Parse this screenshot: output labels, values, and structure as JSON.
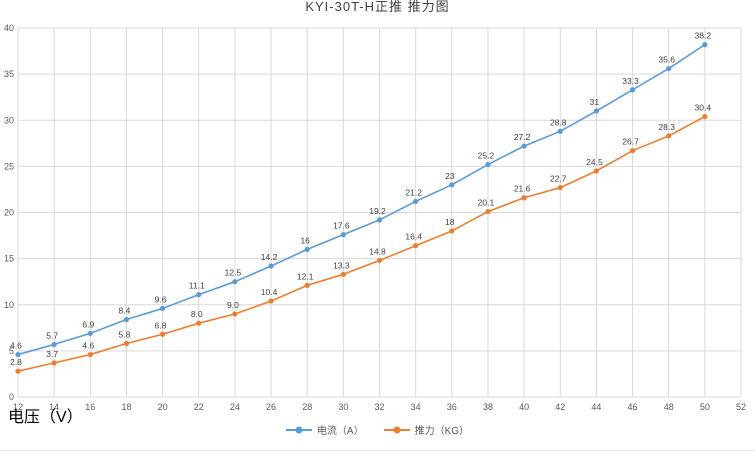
{
  "title": "KYI-30T-H正推 推力图",
  "axis": {
    "x_title": "电压（V）"
  },
  "colors": {
    "current": "#5B9BD5",
    "thrust": "#ED7D31",
    "grid": "#d9d9d9"
  },
  "chart_data": {
    "type": "line",
    "title": "KYI-30T-H正推 推力图",
    "xlabel": "电压（V）",
    "ylabel": "",
    "x": [
      12,
      14,
      16,
      18,
      20,
      22,
      24,
      26,
      28,
      30,
      32,
      34,
      36,
      38,
      40,
      42,
      44,
      46,
      48,
      50
    ],
    "series": [
      {
        "name": "电流（A）",
        "color": "#5B9BD5",
        "values": [
          4.6,
          5.7,
          6.9,
          8.4,
          9.6,
          11.1,
          12.5,
          14.2,
          16,
          17.6,
          19.2,
          21.2,
          23,
          25.2,
          27.2,
          28.8,
          31,
          33.3,
          35.6,
          38.2
        ],
        "labels": [
          "4.6",
          "5.7",
          "6.9",
          "8.4",
          "9.6",
          "11.1",
          "12.5",
          "14.2",
          "16",
          "17.6",
          "19.2",
          "21.2",
          "23",
          "25.2",
          "27.2",
          "28.8",
          "31",
          "33.3",
          "35.6",
          "38.2"
        ]
      },
      {
        "name": "推力（KG）",
        "color": "#ED7D31",
        "values": [
          2.8,
          3.7,
          4.6,
          5.8,
          6.8,
          8.0,
          9.0,
          10.4,
          12.1,
          13.3,
          14.8,
          16.4,
          18,
          20.1,
          21.6,
          22.7,
          24.5,
          26.7,
          28.3,
          30.4
        ],
        "labels": [
          "2.8",
          "3.7",
          "4.6",
          "5.8",
          "6.8",
          "8.0",
          "9.0",
          "10.4",
          "12.1",
          "13.3",
          "14.8",
          "16.4",
          "18",
          "20.1",
          "21.6",
          "22.7",
          "24.5",
          "26.7",
          "28.3",
          "30.4"
        ]
      }
    ],
    "xlim": [
      12,
      52
    ],
    "ylim": [
      0,
      40
    ],
    "xtick_step": 2,
    "ytick_step": 5,
    "grid": true,
    "legend_position": "bottom"
  }
}
